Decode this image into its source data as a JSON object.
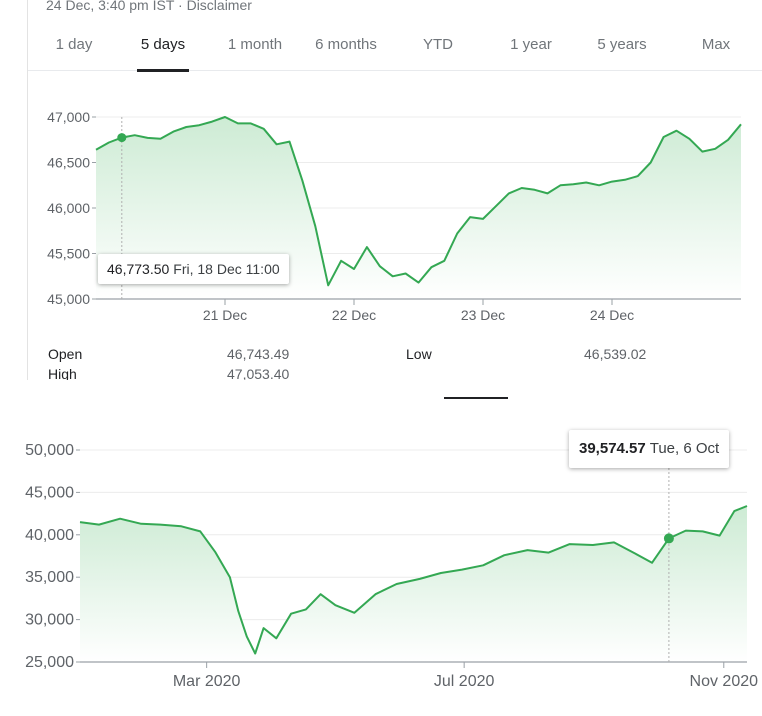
{
  "header": {
    "meta": "24 Dec, 3:40 pm IST · Disclaimer"
  },
  "range_tabs": [
    {
      "label": "1 day",
      "active": false
    },
    {
      "label": "5 days",
      "active": true
    },
    {
      "label": "1 month",
      "active": false
    },
    {
      "label": "6 months",
      "active": false
    },
    {
      "label": "YTD",
      "active": false
    },
    {
      "label": "1 year",
      "active": false
    },
    {
      "label": "5 years",
      "active": false
    },
    {
      "label": "Max",
      "active": false
    }
  ],
  "colors": {
    "line": "#34a853",
    "fill_top": "#cdebd4",
    "axis": "#9aa0a6",
    "grid": "#ececec"
  },
  "tooltip_top": {
    "value": "46,773.50",
    "date": "Fri, 18 Dec 11:00"
  },
  "tooltip_bottom": {
    "value": "39,574.57",
    "date": "Tue, 6 Oct"
  },
  "stats": [
    {
      "label": "Open",
      "value": "46,743.49"
    },
    {
      "label": "Low",
      "value": "46,539.02"
    },
    {
      "label": "High",
      "value": "47,053.40"
    }
  ],
  "chart_data": [
    {
      "type": "area",
      "ylim": [
        45000,
        47000
      ],
      "y_ticks": [
        45000,
        45500,
        46000,
        46500,
        47000
      ],
      "y_tick_labels": [
        "45,000",
        "45,500",
        "46,000",
        "46,500",
        "47,000"
      ],
      "x_ticks": [
        1,
        2,
        3,
        4
      ],
      "x_tick_labels": [
        "21 Dec",
        "22 Dec",
        "23 Dec",
        "24 Dec"
      ],
      "xlim": [
        0,
        5
      ],
      "grid": true,
      "x": [
        0.0,
        0.1,
        0.2,
        0.3,
        0.4,
        0.5,
        0.6,
        0.7,
        0.8,
        0.9,
        1.0,
        1.1,
        1.2,
        1.3,
        1.4,
        1.5,
        1.6,
        1.7,
        1.8,
        1.9,
        2.0,
        2.1,
        2.2,
        2.3,
        2.4,
        2.5,
        2.6,
        2.7,
        2.8,
        2.9,
        3.0,
        3.1,
        3.2,
        3.3,
        3.4,
        3.5,
        3.6,
        3.7,
        3.8,
        3.9,
        4.0,
        4.1,
        4.2,
        4.3,
        4.4,
        4.5,
        4.6,
        4.7,
        4.8,
        4.9,
        5.0
      ],
      "y": [
        46640,
        46720,
        46773.5,
        46800,
        46770,
        46760,
        46840,
        46890,
        46910,
        46950,
        47000,
        46930,
        46930,
        46870,
        46700,
        46730,
        46300,
        45800,
        45150,
        45420,
        45330,
        45570,
        45360,
        45250,
        45280,
        45180,
        45350,
        45420,
        45720,
        45900,
        45880,
        46020,
        46160,
        46220,
        46200,
        46160,
        46250,
        46260,
        46280,
        46250,
        46290,
        46310,
        46350,
        46500,
        46780,
        46850,
        46760,
        46620,
        46650,
        46750,
        46920
      ],
      "highlight": {
        "x": 0.2,
        "y": 46773.5
      }
    },
    {
      "type": "area",
      "ylim": [
        25000,
        50000
      ],
      "y_ticks": [
        25000,
        30000,
        35000,
        40000,
        45000,
        50000
      ],
      "y_tick_labels": [
        "25,000",
        "30,000",
        "35,000",
        "40,000",
        "45,000",
        "50,000"
      ],
      "x_ticks": [
        "2020-03-01",
        "2020-07-01",
        "2020-11-01"
      ],
      "x_tick_labels": [
        "Mar 2020",
        "Jul 2020",
        "Nov 2020"
      ],
      "xlim": [
        "2020-01-01",
        "2020-11-12"
      ],
      "grid": true,
      "x": [
        "2020-01-01",
        "2020-01-10",
        "2020-01-20",
        "2020-01-30",
        "2020-02-08",
        "2020-02-18",
        "2020-02-27",
        "2020-03-05",
        "2020-03-12",
        "2020-03-16",
        "2020-03-20",
        "2020-03-24",
        "2020-03-28",
        "2020-04-03",
        "2020-04-10",
        "2020-04-17",
        "2020-04-24",
        "2020-05-01",
        "2020-05-10",
        "2020-05-20",
        "2020-05-30",
        "2020-06-10",
        "2020-06-20",
        "2020-06-30",
        "2020-07-10",
        "2020-07-20",
        "2020-07-31",
        "2020-08-10",
        "2020-08-20",
        "2020-08-31",
        "2020-09-10",
        "2020-09-20",
        "2020-09-28",
        "2020-10-06",
        "2020-10-14",
        "2020-10-22",
        "2020-10-30",
        "2020-11-06",
        "2020-11-12"
      ],
      "y": [
        41500,
        41200,
        41900,
        41300,
        41200,
        41000,
        40400,
        38000,
        35000,
        31000,
        28000,
        26000,
        29000,
        27800,
        30700,
        31200,
        33000,
        31700,
        30800,
        33000,
        34200,
        34800,
        35500,
        35900,
        36400,
        37600,
        38200,
        37900,
        38900,
        38800,
        39100,
        37800,
        36700,
        39574.57,
        40500,
        40400,
        39900,
        42800,
        43400
      ],
      "highlight": {
        "x": "2020-10-06",
        "y": 39574.57
      }
    }
  ]
}
